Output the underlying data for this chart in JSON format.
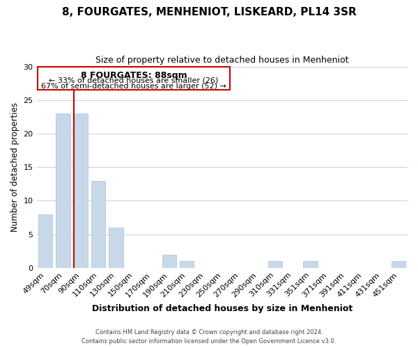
{
  "title": "8, FOURGATES, MENHENIOT, LISKEARD, PL14 3SR",
  "subtitle": "Size of property relative to detached houses in Menheniot",
  "xlabel": "Distribution of detached houses by size in Menheniot",
  "ylabel": "Number of detached properties",
  "bar_color": "#c8d8e8",
  "bar_edge_color": "#a8c0d8",
  "line_color": "#cc0000",
  "categories": [
    "49sqm",
    "70sqm",
    "90sqm",
    "110sqm",
    "130sqm",
    "150sqm",
    "170sqm",
    "190sqm",
    "210sqm",
    "230sqm",
    "250sqm",
    "270sqm",
    "290sqm",
    "310sqm",
    "331sqm",
    "351sqm",
    "371sqm",
    "391sqm",
    "411sqm",
    "431sqm",
    "451sqm"
  ],
  "values": [
    8,
    23,
    23,
    13,
    6,
    0,
    0,
    2,
    1,
    0,
    0,
    0,
    0,
    1,
    0,
    1,
    0,
    0,
    0,
    0,
    1
  ],
  "ylim": [
    0,
    30
  ],
  "yticks": [
    0,
    5,
    10,
    15,
    20,
    25,
    30
  ],
  "annotation_title": "8 FOURGATES: 88sqm",
  "annotation_line1": "← 33% of detached houses are smaller (26)",
  "annotation_line2": "67% of semi-detached houses are larger (52) →",
  "footer1": "Contains HM Land Registry data © Crown copyright and database right 2024.",
  "footer2": "Contains public sector information licensed under the Open Government Licence v3.0.",
  "background_color": "#ffffff",
  "grid_color": "#c8d8e8",
  "title_fontsize": 11,
  "subtitle_fontsize": 9,
  "tick_fontsize": 8,
  "ylabel_fontsize": 8.5,
  "xlabel_fontsize": 9
}
